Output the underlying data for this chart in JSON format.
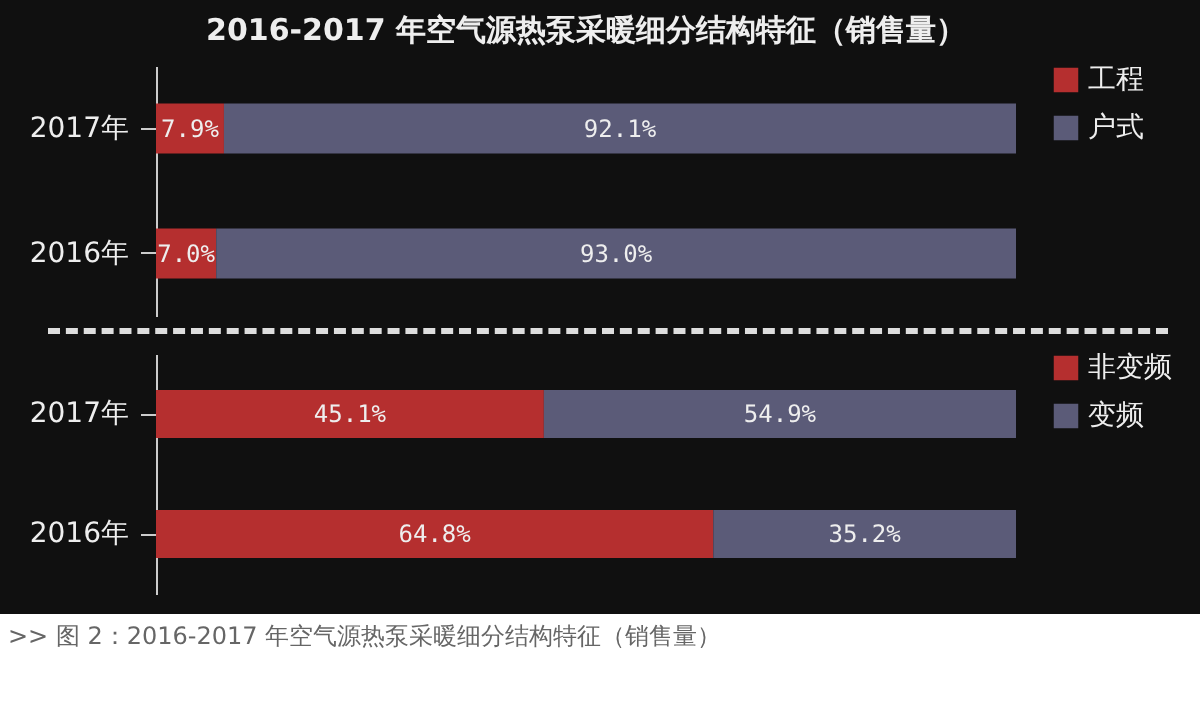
{
  "chart_data": [
    {
      "type": "bar",
      "orientation": "horizontal",
      "stacked": true,
      "title": "2016-2017 年空气源热泵采暖细分结构特征（销售量）",
      "categories": [
        "2017年",
        "2016年"
      ],
      "xlim": [
        0,
        100
      ],
      "tick_labels": "y",
      "legend": "right",
      "series": [
        {
          "name": "工程",
          "color": "#b52f2f",
          "values": [
            7.9,
            7.0
          ],
          "value_labels": [
            "7.9%",
            "7.0%"
          ]
        },
        {
          "name": "户式",
          "color": "#5b5b78",
          "values": [
            92.1,
            93.0
          ],
          "value_labels": [
            "92.1%",
            "93.0%"
          ]
        }
      ]
    },
    {
      "type": "bar",
      "orientation": "horizontal",
      "stacked": true,
      "categories": [
        "2017年",
        "2016年"
      ],
      "xlim": [
        0,
        100
      ],
      "tick_labels": "y",
      "legend": "right",
      "annotations": [
        ">> 图 2：2016-2017 年空气源热泵采暖细分结构特征（销售量）"
      ],
      "series": [
        {
          "name": "非变频",
          "color": "#b52f2f",
          "values": [
            45.1,
            64.8
          ],
          "value_labels": [
            "45.1%",
            "64.8%"
          ]
        },
        {
          "name": "变频",
          "color": "#5b5b78",
          "values": [
            54.9,
            35.2
          ],
          "value_labels": [
            "54.9%",
            "35.2%"
          ]
        }
      ]
    }
  ]
}
